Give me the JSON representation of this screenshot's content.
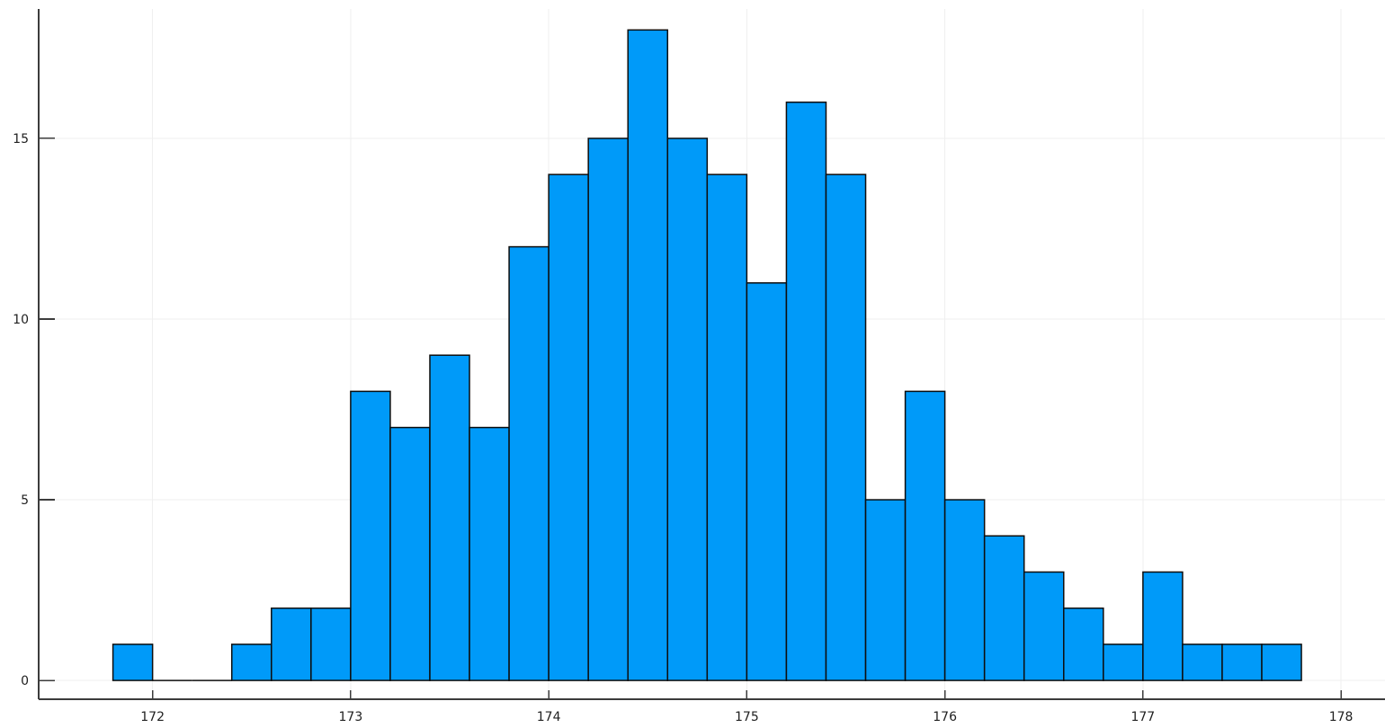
{
  "chart_data": {
    "type": "bar",
    "subtype": "histogram",
    "title": "",
    "xlabel": "",
    "ylabel": "",
    "legend": "none",
    "grid": true,
    "bin_width": 0.2,
    "bin_edges": [
      171.8,
      172.0,
      172.2,
      172.4,
      172.6,
      172.8,
      173.0,
      173.2,
      173.4,
      173.6,
      173.8,
      174.0,
      174.2,
      174.4,
      174.6,
      174.8,
      175.0,
      175.2,
      175.4,
      175.6,
      175.8,
      176.0,
      176.2,
      176.4,
      176.6,
      176.8,
      177.0,
      177.2,
      177.4,
      177.6,
      177.8
    ],
    "counts": [
      1,
      0,
      0,
      1,
      2,
      2,
      8,
      7,
      9,
      7,
      12,
      14,
      15,
      18,
      15,
      14,
      11,
      16,
      14,
      5,
      8,
      5,
      4,
      3,
      2,
      1,
      3,
      1,
      1,
      1
    ],
    "total_count": 200,
    "xticks": [
      172,
      173,
      174,
      175,
      176,
      177,
      178
    ],
    "yticks": [
      0,
      5,
      10,
      15
    ],
    "xlim": [
      171.425,
      178.222
    ],
    "ylim": [
      -0.52,
      18.58
    ],
    "colors": {
      "bar_fill": "#009AF9",
      "bar_edge": "#0E0E0E",
      "grid": "#EFEFEF",
      "axis": "#3C3C3C",
      "tick_label": "#1F1F1F",
      "background": "#FFFFFF"
    }
  }
}
